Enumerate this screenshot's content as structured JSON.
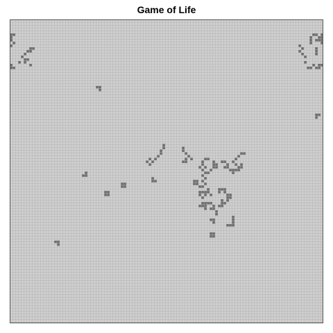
{
  "title": "Game of Life",
  "colors": {
    "dead_cell": "#cfcfcf",
    "alive_cell": "#6e6e6e",
    "grid_line": "#a8a8a8",
    "border": "#555555"
  },
  "grid": {
    "cols": 113,
    "rows": 110
  },
  "live_cells": [
    [
      0,
      5
    ],
    [
      1,
      5
    ],
    [
      0,
      6
    ],
    [
      0,
      7
    ],
    [
      1,
      8
    ],
    [
      0,
      9
    ],
    [
      0,
      16
    ],
    [
      0,
      17
    ],
    [
      1,
      17
    ],
    [
      7,
      10
    ],
    [
      8,
      10
    ],
    [
      6,
      11
    ],
    [
      7,
      11
    ],
    [
      5,
      12
    ],
    [
      4,
      13
    ],
    [
      5,
      14
    ],
    [
      6,
      14
    ],
    [
      3,
      15
    ],
    [
      5,
      15
    ],
    [
      7,
      16
    ],
    [
      104,
      9
    ],
    [
      105,
      10
    ],
    [
      104,
      11
    ],
    [
      105,
      12
    ],
    [
      106,
      13
    ],
    [
      106,
      15
    ],
    [
      108,
      6
    ],
    [
      109,
      5
    ],
    [
      110,
      5
    ],
    [
      111,
      6
    ],
    [
      108,
      7
    ],
    [
      108,
      8
    ],
    [
      110,
      7
    ],
    [
      111,
      7
    ],
    [
      112,
      5
    ],
    [
      112,
      6
    ],
    [
      112,
      7
    ],
    [
      112,
      8
    ],
    [
      110,
      10
    ],
    [
      110,
      11
    ],
    [
      110,
      12
    ],
    [
      109,
      16
    ],
    [
      111,
      16
    ],
    [
      112,
      16
    ],
    [
      110,
      17
    ],
    [
      111,
      17
    ],
    [
      107,
      17
    ],
    [
      108,
      17
    ],
    [
      31,
      24
    ],
    [
      32,
      24
    ],
    [
      32,
      25
    ],
    [
      110,
      34
    ],
    [
      111,
      34
    ],
    [
      110,
      35
    ],
    [
      54,
      47
    ],
    [
      55,
      46
    ],
    [
      55,
      45
    ],
    [
      54,
      48
    ],
    [
      53,
      49
    ],
    [
      52,
      50
    ],
    [
      49,
      51
    ],
    [
      50,
      50
    ],
    [
      50,
      52
    ],
    [
      51,
      51
    ],
    [
      62,
      46
    ],
    [
      62,
      47
    ],
    [
      63,
      48
    ],
    [
      64,
      49
    ],
    [
      65,
      50
    ],
    [
      63,
      50
    ],
    [
      62,
      51
    ],
    [
      63,
      51
    ],
    [
      69,
      51
    ],
    [
      70,
      50
    ],
    [
      71,
      50
    ],
    [
      69,
      52
    ],
    [
      68,
      53
    ],
    [
      69,
      54
    ],
    [
      70,
      53
    ],
    [
      70,
      55
    ],
    [
      71,
      55
    ],
    [
      72,
      54
    ],
    [
      73,
      51
    ],
    [
      73,
      52
    ],
    [
      74,
      52
    ],
    [
      73,
      53
    ],
    [
      74,
      53
    ],
    [
      76,
      51
    ],
    [
      77,
      51
    ],
    [
      78,
      52
    ],
    [
      77,
      53
    ],
    [
      78,
      53
    ],
    [
      80,
      51
    ],
    [
      81,
      50
    ],
    [
      82,
      49
    ],
    [
      83,
      48
    ],
    [
      84,
      48
    ],
    [
      81,
      52
    ],
    [
      82,
      53
    ],
    [
      81,
      54
    ],
    [
      82,
      54
    ],
    [
      83,
      53
    ],
    [
      83,
      52
    ],
    [
      79,
      54
    ],
    [
      80,
      54
    ],
    [
      80,
      55
    ],
    [
      27,
      55
    ],
    [
      26,
      56
    ],
    [
      27,
      56
    ],
    [
      51,
      57
    ],
    [
      51,
      58
    ],
    [
      52,
      58
    ],
    [
      66,
      58
    ],
    [
      67,
      58
    ],
    [
      66,
      59
    ],
    [
      67,
      59
    ],
    [
      68,
      60
    ],
    [
      69,
      56
    ],
    [
      70,
      57
    ],
    [
      69,
      58
    ],
    [
      70,
      59
    ],
    [
      69,
      60
    ],
    [
      40,
      59
    ],
    [
      41,
      59
    ],
    [
      40,
      60
    ],
    [
      41,
      60
    ],
    [
      34,
      62
    ],
    [
      35,
      62
    ],
    [
      34,
      63
    ],
    [
      35,
      63
    ],
    [
      68,
      62
    ],
    [
      69,
      62
    ],
    [
      70,
      62
    ],
    [
      68,
      63
    ],
    [
      70,
      63
    ],
    [
      69,
      64
    ],
    [
      71,
      61
    ],
    [
      71,
      62
    ],
    [
      72,
      63
    ],
    [
      75,
      61
    ],
    [
      76,
      61
    ],
    [
      77,
      61
    ],
    [
      75,
      62
    ],
    [
      77,
      62
    ],
    [
      78,
      63
    ],
    [
      78,
      64
    ],
    [
      79,
      63
    ],
    [
      79,
      64
    ],
    [
      78,
      65
    ],
    [
      76,
      65
    ],
    [
      76,
      66
    ],
    [
      77,
      66
    ],
    [
      75,
      67
    ],
    [
      76,
      67
    ],
    [
      69,
      66
    ],
    [
      70,
      66
    ],
    [
      71,
      66
    ],
    [
      68,
      67
    ],
    [
      69,
      67
    ],
    [
      70,
      67
    ],
    [
      70,
      68
    ],
    [
      72,
      66
    ],
    [
      73,
      67
    ],
    [
      73,
      68
    ],
    [
      72,
      68
    ],
    [
      74,
      69
    ],
    [
      74,
      70
    ],
    [
      72,
      72
    ],
    [
      73,
      72
    ],
    [
      73,
      73
    ],
    [
      80,
      71
    ],
    [
      80,
      72
    ],
    [
      80,
      73
    ],
    [
      78,
      74
    ],
    [
      79,
      74
    ],
    [
      80,
      74
    ],
    [
      72,
      77
    ],
    [
      73,
      77
    ],
    [
      72,
      78
    ],
    [
      73,
      78
    ],
    [
      16,
      80
    ],
    [
      17,
      80
    ],
    [
      17,
      81
    ]
  ]
}
